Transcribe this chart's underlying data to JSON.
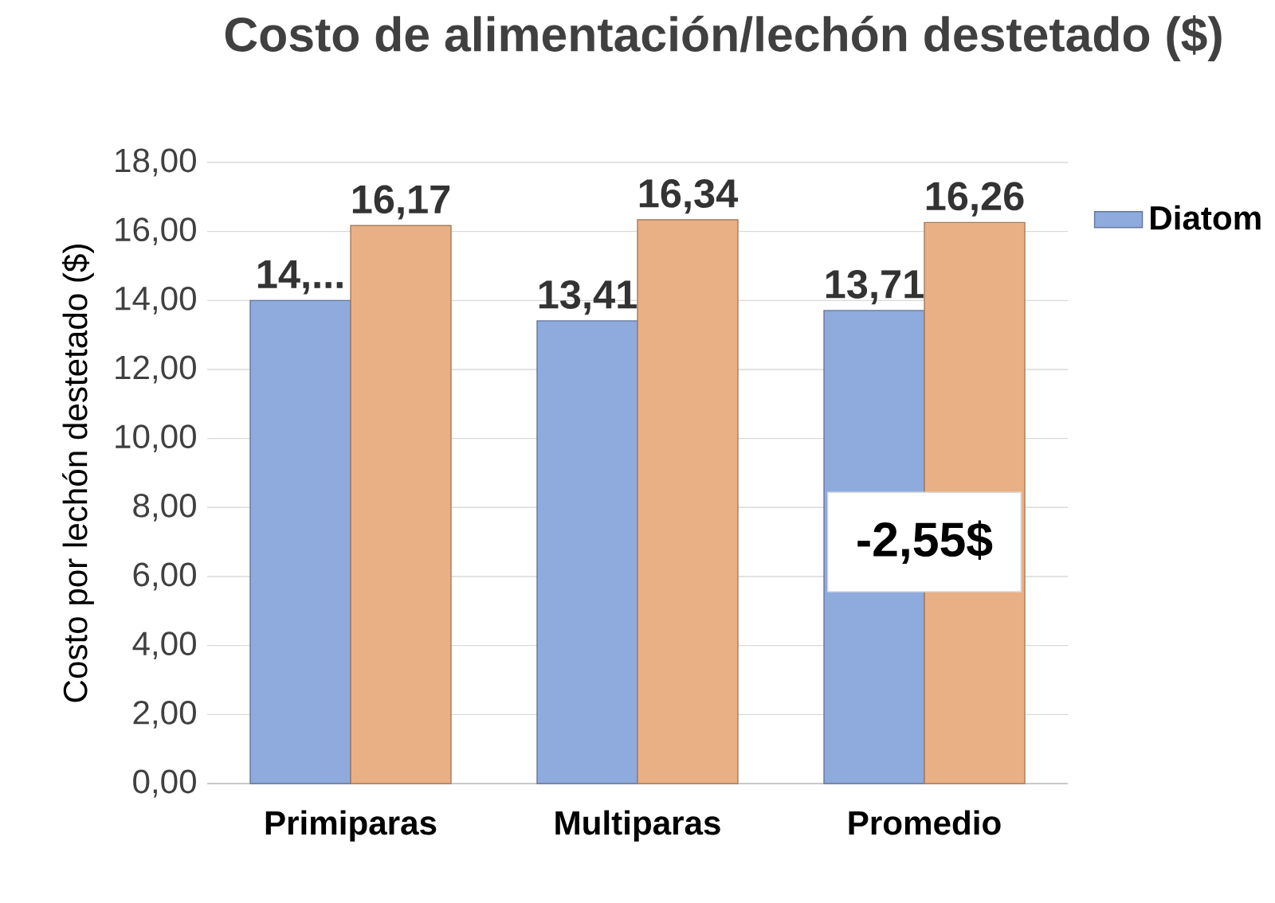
{
  "chart_data": {
    "type": "bar",
    "title": "Costo de alimentación/lechón destetado ($)",
    "ylabel": "Costo por lechón destetado ($)",
    "categories": [
      "Primiparas",
      "Multiparas",
      "Promedio"
    ],
    "series": [
      {
        "name": "Diatom",
        "color": "#8faadc",
        "values": [
          14.0,
          13.41,
          13.71
        ],
        "value_labels": [
          "14,...",
          "13,41",
          "13,71"
        ]
      },
      {
        "color": "#eab085",
        "values": [
          16.17,
          16.34,
          16.26
        ],
        "value_labels": [
          "16,17",
          "16,34",
          "16,26"
        ]
      }
    ],
    "ylim": [
      0,
      18
    ],
    "yticks": [
      {
        "value": 0,
        "label": "0,00"
      },
      {
        "value": 2,
        "label": "2,00"
      },
      {
        "value": 4,
        "label": "4,00"
      },
      {
        "value": 6,
        "label": "6,00"
      },
      {
        "value": 8,
        "label": "8,00"
      },
      {
        "value": 10,
        "label": "10,00"
      },
      {
        "value": 12,
        "label": "12,00"
      },
      {
        "value": 14,
        "label": "14,00"
      },
      {
        "value": 16,
        "label": "16,00"
      },
      {
        "value": 18,
        "label": "18,00"
      }
    ],
    "grid": "y",
    "legend": "top right",
    "annotations": [
      "-2,55$"
    ]
  }
}
